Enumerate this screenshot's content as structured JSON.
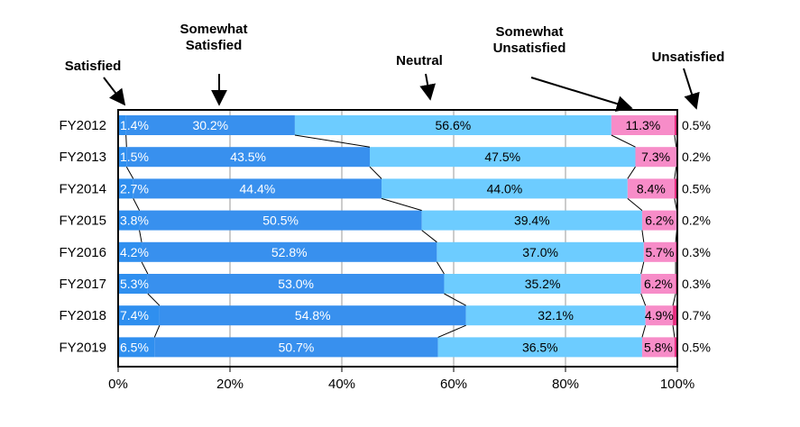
{
  "chart_data": {
    "type": "bar",
    "orientation": "horizontal",
    "stacked": true,
    "categories": [
      "FY2012",
      "FY2013",
      "FY2014",
      "FY2015",
      "FY2016",
      "FY2017",
      "FY2018",
      "FY2019"
    ],
    "series": [
      {
        "name": "Satisfied",
        "color": "#2F8FEF",
        "values": [
          1.4,
          1.5,
          2.7,
          3.8,
          4.2,
          5.3,
          7.4,
          6.5
        ]
      },
      {
        "name": "Somewhat Satisfied",
        "color": "#3890EE",
        "values": [
          30.2,
          43.5,
          44.4,
          50.5,
          52.8,
          53.0,
          54.8,
          50.7
        ]
      },
      {
        "name": "Neutral",
        "color": "#6DCCFF",
        "values": [
          56.6,
          47.5,
          44.0,
          39.4,
          37.0,
          35.2,
          32.1,
          36.5
        ]
      },
      {
        "name": "Somewhat Unsatisfied",
        "color": "#F78CC8",
        "values": [
          11.3,
          7.3,
          8.4,
          6.2,
          5.7,
          6.2,
          4.9,
          5.8
        ]
      },
      {
        "name": "Unsatisfied",
        "color": "#E62E80",
        "values": [
          0.5,
          0.2,
          0.5,
          0.2,
          0.3,
          0.3,
          0.7,
          0.5
        ]
      }
    ],
    "value_labels": {
      "Satisfied": [
        "1.4%",
        "1.5%",
        "2.7%",
        "3.8%",
        "4.2%",
        "5.3%",
        "7.4%",
        "6.5%"
      ],
      "Somewhat Satisfied": [
        "30.2%",
        "43.5%",
        "44.4%",
        "50.5%",
        "52.8%",
        "53.0%",
        "54.8%",
        "50.7%"
      ],
      "Neutral": [
        "56.6%",
        "47.5%",
        "44.0%",
        "39.4%",
        "37.0%",
        "35.2%",
        "32.1%",
        "36.5%"
      ],
      "Somewhat Unsatisfied": [
        "11.3%",
        "7.3%",
        "8.4%",
        "6.2%",
        "5.7%",
        "6.2%",
        "4.9%",
        "5.8%"
      ],
      "Unsatisfied": [
        "0.5%",
        "0.2%",
        "0.5%",
        "0.2%",
        "0.3%",
        "0.3%",
        "0.7%",
        "0.5%"
      ]
    },
    "x_ticks": [
      "0%",
      "20%",
      "40%",
      "60%",
      "80%",
      "100%"
    ],
    "xlim": [
      0,
      100
    ],
    "grid": true,
    "series_lines": true,
    "legend_placement": "top-annotated-arrows",
    "legend_labels": {
      "Satisfied": "Satisfied",
      "Somewhat Satisfied": "Somewhat\nSatisfied",
      "Neutral": "Neutral",
      "Somewhat Unsatisfied": "Somewhat\nUnsatisfied",
      "Unsatisfied": "Unsatisfied"
    },
    "title": "",
    "xlabel": "",
    "ylabel": ""
  }
}
